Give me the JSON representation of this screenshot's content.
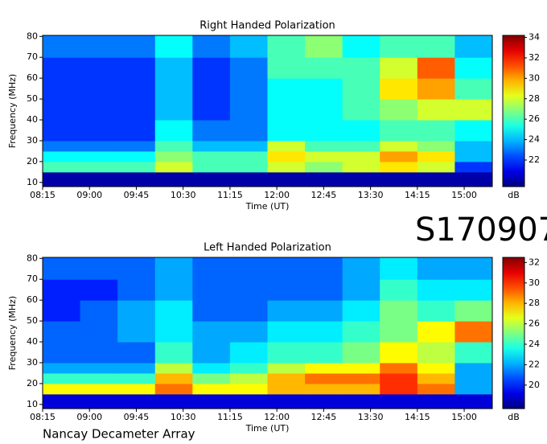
{
  "header": {
    "id": "S170907_",
    "footer": "Nancay Decameter Array"
  },
  "chart_data": [
    {
      "type": "heatmap",
      "title": "Right Handed Polarization",
      "xlabel": "Time (UT)",
      "ylabel": "Frequency (MHz)",
      "colormap": "jet",
      "x_bins": [
        495,
        531,
        567,
        603,
        639,
        675,
        711,
        747,
        783,
        819,
        855,
        891,
        927
      ],
      "y_bins": [
        8,
        15,
        20,
        25,
        30,
        40,
        50,
        60,
        70,
        80.5
      ],
      "z": [
        [
          20,
          20,
          20,
          20,
          20,
          20,
          20,
          20,
          20,
          20,
          20,
          20
        ],
        [
          26,
          26,
          26,
          28,
          26,
          26,
          28,
          27,
          28,
          29,
          28,
          22
        ],
        [
          25,
          25,
          25,
          27,
          26,
          26,
          29,
          28,
          28,
          30,
          29,
          24
        ],
        [
          23,
          23,
          23,
          26,
          24,
          24,
          28,
          26,
          26,
          28,
          27,
          24
        ],
        [
          22,
          22,
          22,
          25,
          23,
          23,
          25,
          25,
          25,
          26,
          26,
          25
        ],
        [
          22,
          22,
          22,
          24,
          22,
          23,
          25,
          25,
          26,
          27,
          28,
          28
        ],
        [
          22,
          22,
          22,
          24,
          22,
          23,
          25,
          25,
          26,
          29,
          30,
          26
        ],
        [
          22,
          22,
          22,
          24,
          22,
          23,
          26,
          26,
          26,
          28,
          31,
          25
        ],
        [
          23,
          23,
          23,
          25,
          23,
          24,
          26,
          27,
          25,
          26,
          26,
          24
        ]
      ],
      "xlim": [
        495,
        927
      ],
      "ylim": [
        8,
        80.5
      ],
      "xticks": [
        {
          "value": 495,
          "label": "08:15"
        },
        {
          "value": 540,
          "label": "09:00"
        },
        {
          "value": 585,
          "label": "09:45"
        },
        {
          "value": 630,
          "label": "10:30"
        },
        {
          "value": 675,
          "label": "11:15"
        },
        {
          "value": 720,
          "label": "12:00"
        },
        {
          "value": 765,
          "label": "12:45"
        },
        {
          "value": 810,
          "label": "13:30"
        },
        {
          "value": 855,
          "label": "14:15"
        },
        {
          "value": 900,
          "label": "15:00"
        }
      ],
      "yticks": [
        10,
        20,
        30,
        40,
        50,
        60,
        70,
        80
      ],
      "colorbar": {
        "label": "dB",
        "lim": [
          19.4,
          34.2
        ],
        "ticks": [
          22,
          24,
          26,
          28,
          30,
          32,
          34
        ]
      }
    },
    {
      "type": "heatmap",
      "title": "Left Handed Polarization",
      "xlabel": "Time (UT)",
      "ylabel": "Frequency (MHz)",
      "colormap": "jet",
      "x_bins": [
        495,
        531,
        567,
        603,
        639,
        675,
        711,
        747,
        783,
        819,
        855,
        891,
        927
      ],
      "y_bins": [
        8,
        15,
        20,
        25,
        30,
        40,
        50,
        60,
        70,
        80.5
      ],
      "z": [
        [
          19,
          19,
          19,
          19,
          19,
          19,
          19,
          19,
          19,
          19,
          19,
          19
        ],
        [
          27,
          27,
          27,
          29,
          27,
          27,
          28,
          28,
          28,
          30,
          29,
          22
        ],
        [
          24,
          24,
          24,
          28,
          25,
          26,
          28,
          29,
          29,
          30,
          28,
          22
        ],
        [
          22,
          22,
          22,
          26,
          23,
          24,
          26,
          27,
          27,
          29,
          27,
          22
        ],
        [
          21,
          21,
          21,
          24,
          22,
          23,
          24,
          24,
          25,
          27,
          26,
          24
        ],
        [
          21,
          21,
          22,
          23,
          22,
          22,
          23,
          23,
          24,
          25,
          27,
          29
        ],
        [
          20,
          21,
          22,
          23,
          21,
          21,
          22,
          22,
          23,
          25,
          24,
          25
        ],
        [
          20,
          20,
          21,
          22,
          21,
          21,
          21,
          21,
          22,
          24,
          23,
          23
        ],
        [
          21,
          21,
          21,
          22,
          21,
          21,
          21,
          21,
          22,
          23,
          22,
          22
        ]
      ],
      "xlim": [
        495,
        927
      ],
      "ylim": [
        8,
        80.5
      ],
      "xticks": [
        {
          "value": 495,
          "label": "08:15"
        },
        {
          "value": 540,
          "label": "09:00"
        },
        {
          "value": 585,
          "label": "09:45"
        },
        {
          "value": 630,
          "label": "10:30"
        },
        {
          "value": 675,
          "label": "11:15"
        },
        {
          "value": 720,
          "label": "12:00"
        },
        {
          "value": 765,
          "label": "12:45"
        },
        {
          "value": 810,
          "label": "13:30"
        },
        {
          "value": 855,
          "label": "14:15"
        },
        {
          "value": 900,
          "label": "15:00"
        }
      ],
      "yticks": [
        10,
        20,
        30,
        40,
        50,
        60,
        70,
        80
      ],
      "colorbar": {
        "label": "dB",
        "lim": [
          17.7,
          32.5
        ],
        "ticks": [
          20,
          22,
          24,
          26,
          28,
          30,
          32
        ]
      }
    }
  ]
}
